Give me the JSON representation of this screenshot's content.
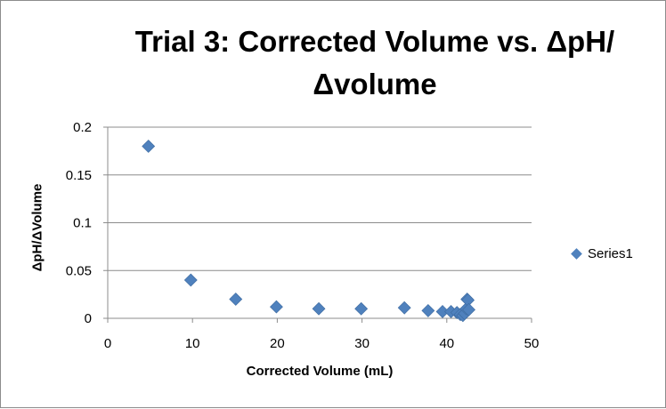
{
  "chart_data": {
    "type": "scatter",
    "title_line1": "Trial 3: Corrected Volume vs. ΔpH/",
    "title_line2": "Δvolume",
    "xlabel": "Corrected Volume (mL)",
    "ylabel": "ΔpH/ΔVolume",
    "xlim": [
      0,
      50
    ],
    "ylim": [
      0,
      0.2
    ],
    "xticks": [
      "0",
      "10",
      "20",
      "30",
      "40",
      "50"
    ],
    "yticks": [
      "0",
      "0.05",
      "0.1",
      "0.15",
      "0.2"
    ],
    "grid": "horizontal",
    "legend_position": "right",
    "series": [
      {
        "name": "Series1",
        "color": "#4f81bd",
        "marker": "diamond",
        "x": [
          4.8,
          9.8,
          15.1,
          19.9,
          24.9,
          29.9,
          35.0,
          37.8,
          39.5,
          40.5,
          41.2,
          41.6,
          41.9,
          42.1,
          42.3,
          42.4,
          42.5,
          42.6
        ],
        "y": [
          0.18,
          0.04,
          0.02,
          0.012,
          0.01,
          0.01,
          0.011,
          0.008,
          0.007,
          0.007,
          0.006,
          0.004,
          0.003,
          0.005,
          0.01,
          0.02,
          0.019,
          0.009
        ]
      }
    ]
  }
}
